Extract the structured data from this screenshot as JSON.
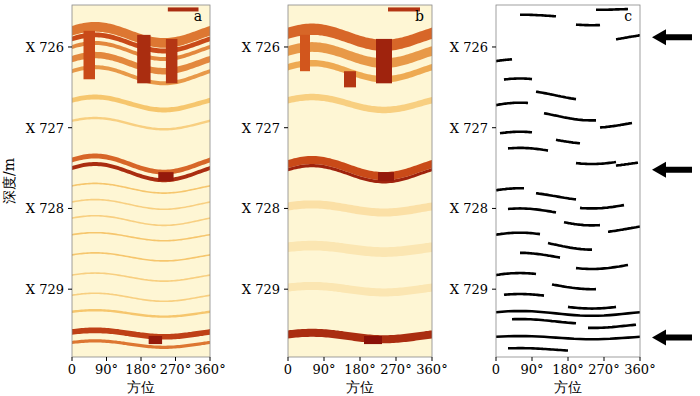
{
  "chart_data": [
    {
      "type": "image_log",
      "title": "a",
      "ylabel": "深度/m",
      "xlabel": "方位",
      "xlim": [
        0,
        360
      ],
      "ylim": [
        725.48,
        729.84
      ],
      "trough_azimuth": 240,
      "xticks": [
        0,
        {
          "value": 90,
          "label": "90°"
        },
        {
          "value": 180,
          "label": "180°"
        },
        {
          "value": 270,
          "label": "270°"
        },
        {
          "value": 360,
          "label": "360°"
        }
      ],
      "yticks": [
        {
          "value": 726,
          "label": "X 726"
        },
        {
          "value": 727,
          "label": "X 727"
        },
        {
          "value": 728,
          "label": "X 728"
        },
        {
          "value": 729,
          "label": "X 729"
        }
      ],
      "bands": [
        {
          "depth": 725.85,
          "amplitude": 0.1,
          "thickness": 0.12,
          "intensity": 0.55
        },
        {
          "depth": 725.95,
          "amplitude": 0.1,
          "thickness": 0.06,
          "intensity": 0.7
        },
        {
          "depth": 726.05,
          "amplitude": 0.1,
          "thickness": 0.05,
          "intensity": 0.5
        },
        {
          "depth": 726.2,
          "amplitude": 0.1,
          "thickness": 0.08,
          "intensity": 0.5
        },
        {
          "depth": 726.35,
          "amplitude": 0.1,
          "thickness": 0.05,
          "intensity": 0.45
        },
        {
          "depth": 726.7,
          "amplitude": 0.08,
          "thickness": 0.06,
          "intensity": 0.3
        },
        {
          "depth": 726.95,
          "amplitude": 0.07,
          "thickness": 0.03,
          "intensity": 0.25
        },
        {
          "depth": 727.45,
          "amplitude": 0.1,
          "thickness": 0.06,
          "intensity": 0.6
        },
        {
          "depth": 727.55,
          "amplitude": 0.1,
          "thickness": 0.05,
          "intensity": 0.85
        },
        {
          "depth": 727.75,
          "amplitude": 0.06,
          "thickness": 0.02,
          "intensity": 0.3
        },
        {
          "depth": 727.95,
          "amplitude": 0.06,
          "thickness": 0.02,
          "intensity": 0.25
        },
        {
          "depth": 728.15,
          "amplitude": 0.06,
          "thickness": 0.02,
          "intensity": 0.25
        },
        {
          "depth": 728.35,
          "amplitude": 0.05,
          "thickness": 0.02,
          "intensity": 0.3
        },
        {
          "depth": 728.6,
          "amplitude": 0.05,
          "thickness": 0.02,
          "intensity": 0.3
        },
        {
          "depth": 728.85,
          "amplitude": 0.05,
          "thickness": 0.02,
          "intensity": 0.25
        },
        {
          "depth": 729.1,
          "amplitude": 0.05,
          "thickness": 0.02,
          "intensity": 0.25
        },
        {
          "depth": 729.3,
          "amplitude": 0.04,
          "thickness": 0.03,
          "intensity": 0.3
        },
        {
          "depth": 729.55,
          "amplitude": 0.04,
          "thickness": 0.07,
          "intensity": 0.75
        },
        {
          "depth": 729.68,
          "amplitude": 0.04,
          "thickness": 0.04,
          "intensity": 0.55
        }
      ],
      "patches": [
        {
          "depth_top": 725.51,
          "depth_bottom": 725.56,
          "az_from": 250,
          "az_to": 330,
          "intensity": 0.85
        },
        {
          "depth_top": 725.8,
          "depth_bottom": 726.4,
          "az_from": 30,
          "az_to": 60,
          "intensity": 0.7
        },
        {
          "depth_top": 725.85,
          "depth_bottom": 726.45,
          "az_from": 170,
          "az_to": 205,
          "intensity": 0.85
        },
        {
          "depth_top": 725.9,
          "depth_bottom": 726.45,
          "az_from": 245,
          "az_to": 275,
          "intensity": 0.8
        },
        {
          "depth_top": 727.55,
          "depth_bottom": 727.66,
          "az_from": 225,
          "az_to": 265,
          "intensity": 0.95
        },
        {
          "depth_top": 729.58,
          "depth_bottom": 729.68,
          "az_from": 200,
          "az_to": 235,
          "intensity": 0.95
        }
      ]
    },
    {
      "type": "image_log",
      "title": "b",
      "xlabel": "方位",
      "xlim": [
        0,
        360
      ],
      "ylim": [
        725.48,
        729.84
      ],
      "trough_azimuth": 240,
      "xticks": [
        0,
        {
          "value": 90,
          "label": "90°"
        },
        {
          "value": 180,
          "label": "180°"
        },
        {
          "value": 270,
          "label": "270°"
        },
        {
          "value": 360,
          "label": "360°"
        }
      ],
      "yticks": [
        {
          "value": 726,
          "label": "X 726"
        },
        {
          "value": 727,
          "label": "X 727"
        },
        {
          "value": 728,
          "label": "X 728"
        },
        {
          "value": 729,
          "label": "X 729"
        }
      ],
      "bands": [
        {
          "depth": 725.88,
          "amplitude": 0.1,
          "thickness": 0.14,
          "intensity": 0.6
        },
        {
          "depth": 726.1,
          "amplitude": 0.1,
          "thickness": 0.12,
          "intensity": 0.45
        },
        {
          "depth": 726.3,
          "amplitude": 0.1,
          "thickness": 0.08,
          "intensity": 0.4
        },
        {
          "depth": 726.7,
          "amplitude": 0.08,
          "thickness": 0.08,
          "intensity": 0.25
        },
        {
          "depth": 727.5,
          "amplitude": 0.1,
          "thickness": 0.1,
          "intensity": 0.7
        },
        {
          "depth": 727.57,
          "amplitude": 0.1,
          "thickness": 0.04,
          "intensity": 0.9
        },
        {
          "depth": 728.0,
          "amplitude": 0.05,
          "thickness": 0.1,
          "intensity": 0.15
        },
        {
          "depth": 728.5,
          "amplitude": 0.04,
          "thickness": 0.12,
          "intensity": 0.12
        },
        {
          "depth": 729.0,
          "amplitude": 0.04,
          "thickness": 0.1,
          "intensity": 0.12
        },
        {
          "depth": 729.58,
          "amplitude": 0.04,
          "thickness": 0.1,
          "intensity": 0.85
        }
      ],
      "patches": [
        {
          "depth_top": 725.51,
          "depth_bottom": 725.56,
          "az_from": 250,
          "az_to": 330,
          "intensity": 0.8
        },
        {
          "depth_top": 725.85,
          "depth_bottom": 726.3,
          "az_from": 30,
          "az_to": 55,
          "intensity": 0.65
        },
        {
          "depth_top": 726.3,
          "depth_bottom": 726.5,
          "az_from": 140,
          "az_to": 170,
          "intensity": 0.8
        },
        {
          "depth_top": 725.9,
          "depth_bottom": 726.45,
          "az_from": 220,
          "az_to": 260,
          "intensity": 0.9
        },
        {
          "depth_top": 727.55,
          "depth_bottom": 727.66,
          "az_from": 225,
          "az_to": 265,
          "intensity": 0.95
        },
        {
          "depth_top": 729.58,
          "depth_bottom": 729.68,
          "az_from": 190,
          "az_to": 235,
          "intensity": 1.0
        }
      ]
    },
    {
      "type": "trace_log",
      "title": "c",
      "xlabel": "方位",
      "xlim": [
        0,
        360
      ],
      "ylim": [
        725.48,
        729.84
      ],
      "trough_azimuth": 240,
      "xticks": [
        0,
        {
          "value": 90,
          "label": "90°"
        },
        {
          "value": 180,
          "label": "180°"
        },
        {
          "value": 270,
          "label": "270°"
        },
        {
          "value": 360,
          "label": "360°"
        }
      ],
      "yticks": [
        {
          "value": 726,
          "label": "X 726"
        },
        {
          "value": 727,
          "label": "X 727"
        },
        {
          "value": 728,
          "label": "X 728"
        },
        {
          "value": 729,
          "label": "X 729"
        }
      ],
      "traces": [
        {
          "depth": 725.53,
          "amplitude": 0.01,
          "az_from": 250,
          "az_to": 330
        },
        {
          "depth": 725.62,
          "amplitude": 0.02,
          "az_from": 60,
          "az_to": 150
        },
        {
          "depth": 725.7,
          "amplitude": 0.03,
          "az_from": 200,
          "az_to": 260
        },
        {
          "depth": 725.88,
          "amplitude": 0.05,
          "az_from": 300,
          "az_to": 360
        },
        {
          "depth": 726.2,
          "amplitude": 0.05,
          "az_from": 0,
          "az_to": 40
        },
        {
          "depth": 726.45,
          "amplitude": 0.06,
          "az_from": 20,
          "az_to": 90
        },
        {
          "depth": 726.6,
          "amplitude": 0.06,
          "az_from": 100,
          "az_to": 200
        },
        {
          "depth": 726.75,
          "amplitude": 0.06,
          "az_from": 0,
          "az_to": 80
        },
        {
          "depth": 726.85,
          "amplitude": 0.06,
          "az_from": 120,
          "az_to": 250
        },
        {
          "depth": 726.95,
          "amplitude": 0.05,
          "az_from": 260,
          "az_to": 340
        },
        {
          "depth": 727.1,
          "amplitude": 0.05,
          "az_from": 10,
          "az_to": 90
        },
        {
          "depth": 727.15,
          "amplitude": 0.05,
          "az_from": 150,
          "az_to": 210
        },
        {
          "depth": 727.3,
          "amplitude": 0.05,
          "az_from": 30,
          "az_to": 130
        },
        {
          "depth": 727.4,
          "amplitude": 0.05,
          "az_from": 200,
          "az_to": 300
        },
        {
          "depth": 727.45,
          "amplitude": 0.04,
          "az_from": 300,
          "az_to": 355
        },
        {
          "depth": 727.8,
          "amplitude": 0.05,
          "az_from": 0,
          "az_to": 70
        },
        {
          "depth": 727.85,
          "amplitude": 0.05,
          "az_from": 100,
          "az_to": 200
        },
        {
          "depth": 727.95,
          "amplitude": 0.05,
          "az_from": 210,
          "az_to": 320
        },
        {
          "depth": 728.05,
          "amplitude": 0.05,
          "az_from": 30,
          "az_to": 150
        },
        {
          "depth": 728.15,
          "amplitude": 0.06,
          "az_from": 170,
          "az_to": 260
        },
        {
          "depth": 728.25,
          "amplitude": 0.05,
          "az_from": 280,
          "az_to": 360
        },
        {
          "depth": 728.35,
          "amplitude": 0.05,
          "az_from": 0,
          "az_to": 110
        },
        {
          "depth": 728.45,
          "amplitude": 0.06,
          "az_from": 130,
          "az_to": 240
        },
        {
          "depth": 728.6,
          "amplitude": 0.05,
          "az_from": 60,
          "az_to": 160
        },
        {
          "depth": 728.7,
          "amplitude": 0.05,
          "az_from": 200,
          "az_to": 330
        },
        {
          "depth": 728.85,
          "amplitude": 0.05,
          "az_from": 0,
          "az_to": 100
        },
        {
          "depth": 728.95,
          "amplitude": 0.05,
          "az_from": 140,
          "az_to": 250
        },
        {
          "depth": 729.1,
          "amplitude": 0.04,
          "az_from": 20,
          "az_to": 120
        },
        {
          "depth": 729.2,
          "amplitude": 0.04,
          "az_from": 180,
          "az_to": 300
        },
        {
          "depth": 729.3,
          "amplitude": 0.03,
          "az_from": 0,
          "az_to": 360
        },
        {
          "depth": 729.4,
          "amplitude": 0.03,
          "az_from": 40,
          "az_to": 200
        },
        {
          "depth": 729.45,
          "amplitude": 0.03,
          "az_from": 230,
          "az_to": 350
        },
        {
          "depth": 729.6,
          "amplitude": 0.02,
          "az_from": 0,
          "az_to": 360
        },
        {
          "depth": 729.75,
          "amplitude": 0.02,
          "az_from": 30,
          "az_to": 180
        }
      ],
      "arrows": [
        725.88,
        727.52,
        729.6
      ]
    }
  ]
}
